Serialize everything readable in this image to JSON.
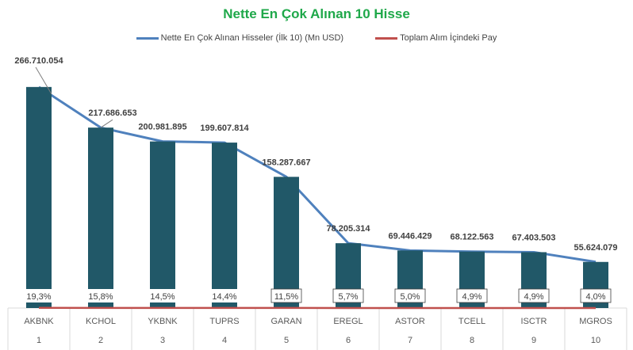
{
  "chart_data": {
    "type": "bar",
    "title": "Nette En Çok Alınan 10 Hisse",
    "categories": [
      "AKBNK",
      "KCHOL",
      "YKBNK",
      "TUPRS",
      "GARAN",
      "EREGL",
      "ASTOR",
      "TCELL",
      "ISCTR",
      "MGROS"
    ],
    "ranks": [
      "1",
      "2",
      "3",
      "4",
      "5",
      "6",
      "7",
      "8",
      "9",
      "10"
    ],
    "series": [
      {
        "name": "Nette En Çok Alınan Hisseler (İlk 10) (Mn USD)",
        "type": "bar+line",
        "color": "#4f81bd",
        "bar_color": "#215868",
        "values": [
          266.710054,
          217.686653,
          200.981895,
          199.607814,
          158.287667,
          78.205314,
          69.446429,
          68.122563,
          67.403503,
          55.624079
        ],
        "labels": [
          "266.710.054",
          "217.686.653",
          "200.981.895",
          "199.607.814",
          "158.287.667",
          "78.205.314",
          "69.446.429",
          "68.122.563",
          "67.403.503",
          "55.624.079"
        ]
      },
      {
        "name": "Toplam Alım İçindeki Pay",
        "type": "line",
        "color": "#c0504d",
        "values": [
          19.3,
          15.8,
          14.5,
          14.4,
          11.5,
          5.7,
          5.0,
          4.9,
          4.9,
          4.0
        ],
        "labels": [
          "19,3%",
          "15,8%",
          "14,5%",
          "14,4%",
          "11,5%",
          "5,7%",
          "5,0%",
          "4,9%",
          "4,9%",
          "4,0%"
        ]
      }
    ],
    "ylim": [
      0,
      300
    ],
    "legend": "top"
  }
}
